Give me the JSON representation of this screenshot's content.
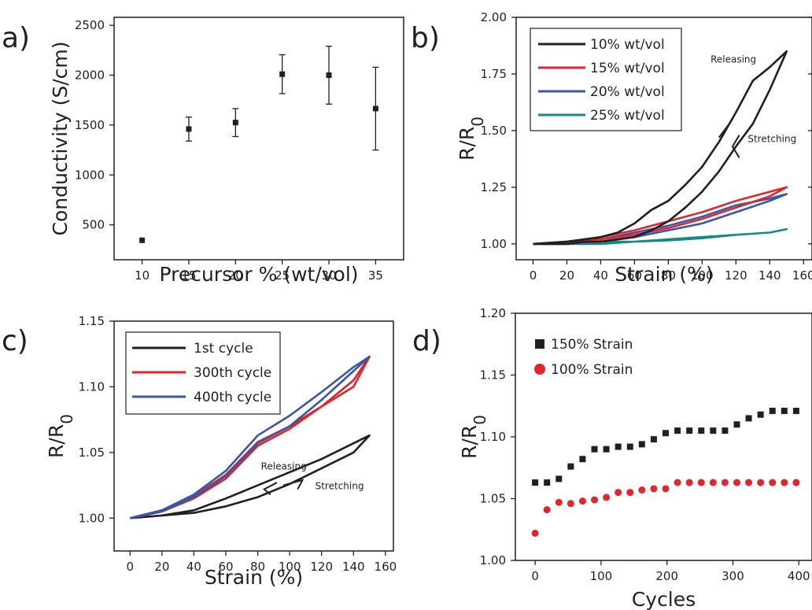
{
  "colors": {
    "black": "#231f20",
    "red": "#e0262b",
    "blue": "#3a57a7",
    "teal": "#128a86"
  },
  "chart_data": [
    {
      "panel": "a)",
      "type": "scatter",
      "xlabel": "Precursor % (wt/vol)",
      "ylabel": "Conductivity (S/cm)",
      "xlim": [
        7,
        38
      ],
      "ylim": [
        150,
        2580
      ],
      "xticks": [
        10,
        15,
        20,
        25,
        30,
        35
      ],
      "yticks": [
        500,
        1000,
        1500,
        2000,
        2500
      ],
      "series": [
        {
          "x": [
            10,
            15,
            20,
            25,
            30,
            35
          ],
          "y": [
            345,
            1460,
            1525,
            2010,
            2000,
            1665
          ],
          "err": [
            0,
            120,
            140,
            195,
            290,
            415
          ],
          "color": "#231f20",
          "marker": "square"
        }
      ]
    },
    {
      "panel": "b)",
      "type": "line",
      "xlabel": "Strain (%)",
      "ylabel_main": "R/R",
      "ylabel_sub": "0",
      "xlim": [
        -10,
        165
      ],
      "ylim": [
        0.93,
        2.0
      ],
      "xticks": [
        0,
        20,
        40,
        60,
        80,
        100,
        120,
        140,
        160
      ],
      "yticks": [
        "1.00",
        "1.25",
        "1.50",
        "1.75",
        "2.00"
      ],
      "annotations": [
        "Releasing",
        "Stretching"
      ],
      "series": [
        {
          "name": "10% wt/vol",
          "color": "#231f20",
          "x": [
            0,
            20,
            40,
            50,
            60,
            70,
            80,
            90,
            100,
            110,
            120,
            130,
            140,
            150,
            140,
            130,
            120,
            110,
            100,
            90,
            80,
            70,
            60,
            50,
            40,
            30,
            20,
            10,
            0
          ],
          "y": [
            1.0,
            1.01,
            1.03,
            1.05,
            1.09,
            1.15,
            1.19,
            1.26,
            1.34,
            1.45,
            1.58,
            1.72,
            1.78,
            1.85,
            1.68,
            1.53,
            1.43,
            1.32,
            1.23,
            1.16,
            1.1,
            1.06,
            1.03,
            1.02,
            1.01,
            1.01,
            1.0,
            1.0,
            1.0
          ]
        },
        {
          "name": "15% wt/vol",
          "color": "#e0262b",
          "x": [
            0,
            20,
            40,
            60,
            80,
            100,
            120,
            140,
            150,
            140,
            120,
            100,
            80,
            60,
            40,
            20,
            0
          ],
          "y": [
            1.0,
            1.01,
            1.03,
            1.06,
            1.1,
            1.14,
            1.19,
            1.23,
            1.25,
            1.21,
            1.16,
            1.11,
            1.07,
            1.04,
            1.02,
            1.01,
            1.0
          ]
        },
        {
          "name": "20% wt/vol",
          "color": "#3a57a7",
          "x": [
            0,
            20,
            40,
            60,
            80,
            100,
            120,
            140,
            150,
            140,
            120,
            100,
            80,
            60,
            40,
            20,
            0
          ],
          "y": [
            1.0,
            1.01,
            1.02,
            1.05,
            1.08,
            1.12,
            1.17,
            1.2,
            1.22,
            1.19,
            1.14,
            1.09,
            1.06,
            1.03,
            1.01,
            1.0,
            1.0
          ]
        },
        {
          "name": "25% wt/vol",
          "color": "#128a86",
          "x": [
            0,
            20,
            40,
            60,
            80,
            100,
            120,
            140,
            150,
            140,
            120,
            100,
            80,
            60,
            40,
            20,
            0
          ],
          "y": [
            1.0,
            1.0,
            1.01,
            1.01,
            1.02,
            1.03,
            1.04,
            1.05,
            1.065,
            1.05,
            1.04,
            1.025,
            1.015,
            1.01,
            1.0,
            1.0,
            1.0
          ]
        }
      ]
    },
    {
      "panel": "c)",
      "type": "line",
      "xlabel": "Strain (%)",
      "ylabel_main": "R/R",
      "ylabel_sub": "0",
      "xlim": [
        -10,
        165
      ],
      "ylim": [
        0.975,
        1.15
      ],
      "xticks": [
        0,
        20,
        40,
        60,
        80,
        100,
        120,
        140,
        160
      ],
      "yticks": [
        "1.00",
        "1.05",
        "1.10",
        "1.15"
      ],
      "annotations": [
        "Releasing",
        "Stretching"
      ],
      "series": [
        {
          "name": "1st cycle",
          "color": "#231f20",
          "x": [
            0,
            20,
            40,
            60,
            80,
            100,
            120,
            140,
            150,
            140,
            120,
            100,
            80,
            60,
            40,
            20,
            0
          ],
          "y": [
            1.0,
            1.002,
            1.004,
            1.009,
            1.016,
            1.026,
            1.038,
            1.05,
            1.063,
            1.057,
            1.045,
            1.035,
            1.025,
            1.015,
            1.006,
            1.002,
            1.0
          ]
        },
        {
          "name": "300th cycle",
          "color": "#e0262b",
          "x": [
            0,
            20,
            40,
            60,
            80,
            100,
            120,
            140,
            150,
            140,
            120,
            100,
            80,
            60,
            40,
            20,
            0
          ],
          "y": [
            1.0,
            1.005,
            1.015,
            1.03,
            1.055,
            1.068,
            1.085,
            1.1,
            1.123,
            1.105,
            1.085,
            1.07,
            1.058,
            1.033,
            1.017,
            1.006,
            1.0
          ]
        },
        {
          "name": "400th cycle",
          "color": "#3a57a7",
          "x": [
            0,
            20,
            40,
            60,
            80,
            100,
            120,
            140,
            150,
            140,
            120,
            100,
            80,
            60,
            40,
            20,
            0
          ],
          "y": [
            1.0,
            1.005,
            1.016,
            1.032,
            1.057,
            1.07,
            1.09,
            1.112,
            1.123,
            1.115,
            1.096,
            1.078,
            1.063,
            1.036,
            1.018,
            1.006,
            1.0
          ]
        }
      ]
    },
    {
      "panel": "d)",
      "type": "scatter",
      "xlabel": "Cycles",
      "ylabel_main": "R/R",
      "ylabel_sub": "0",
      "xlim": [
        -30,
        420
      ],
      "ylim": [
        1.0,
        1.2
      ],
      "xticks": [
        0,
        100,
        200,
        300,
        400
      ],
      "yticks": [
        "1.00",
        "1.05",
        "1.10",
        "1.15",
        "1.20"
      ],
      "series": [
        {
          "name": "150% Strain",
          "color": "#231f20",
          "marker": "square",
          "x": [
            0,
            18,
            36,
            54,
            72,
            90,
            108,
            126,
            144,
            162,
            180,
            198,
            216,
            234,
            252,
            270,
            288,
            306,
            324,
            342,
            360,
            378,
            396
          ],
          "y": [
            1.063,
            1.063,
            1.066,
            1.076,
            1.082,
            1.09,
            1.09,
            1.092,
            1.092,
            1.094,
            1.098,
            1.103,
            1.105,
            1.105,
            1.105,
            1.105,
            1.105,
            1.11,
            1.115,
            1.118,
            1.121,
            1.121,
            1.121
          ]
        },
        {
          "name": "100% Strain",
          "color": "#e0262b",
          "marker": "circle",
          "x": [
            0,
            18,
            36,
            54,
            72,
            90,
            108,
            126,
            144,
            162,
            180,
            198,
            216,
            234,
            252,
            270,
            288,
            306,
            324,
            342,
            360,
            378,
            396
          ],
          "y": [
            1.022,
            1.041,
            1.047,
            1.046,
            1.048,
            1.049,
            1.051,
            1.055,
            1.055,
            1.057,
            1.058,
            1.058,
            1.063,
            1.063,
            1.063,
            1.063,
            1.063,
            1.063,
            1.063,
            1.063,
            1.063,
            1.063,
            1.063
          ]
        }
      ]
    }
  ]
}
